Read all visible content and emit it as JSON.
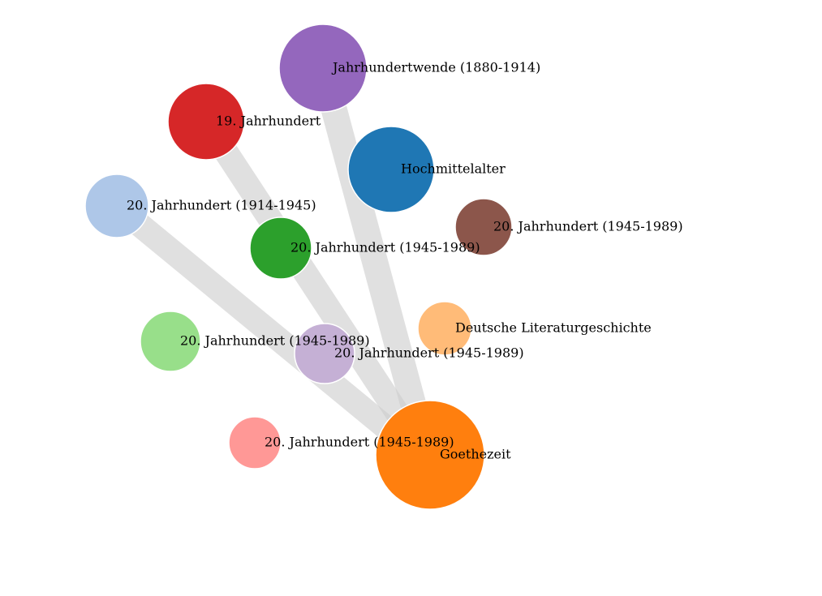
{
  "nodes": [
    {
      "label": "Jahrhundertwende (1880-1914)"
    },
    {
      "label": "19. Jahrhundert"
    },
    {
      "label": "Hochmittelalter"
    },
    {
      "label": "20. Jahrhundert (1914-1945)"
    },
    {
      "label": "20. Jahrhundert (1945-1989)"
    },
    {
      "label": "20. Jahrhundert (1945-1989)"
    },
    {
      "label": "Deutsche Literaturgeschichte"
    },
    {
      "label": "20. Jahrhundert (1945-1989)"
    },
    {
      "label": "20. Jahrhundert (1945-1989)"
    },
    {
      "label": "20. Jahrhundert (1945-1989)"
    },
    {
      "label": "Goethezeit"
    }
  ]
}
